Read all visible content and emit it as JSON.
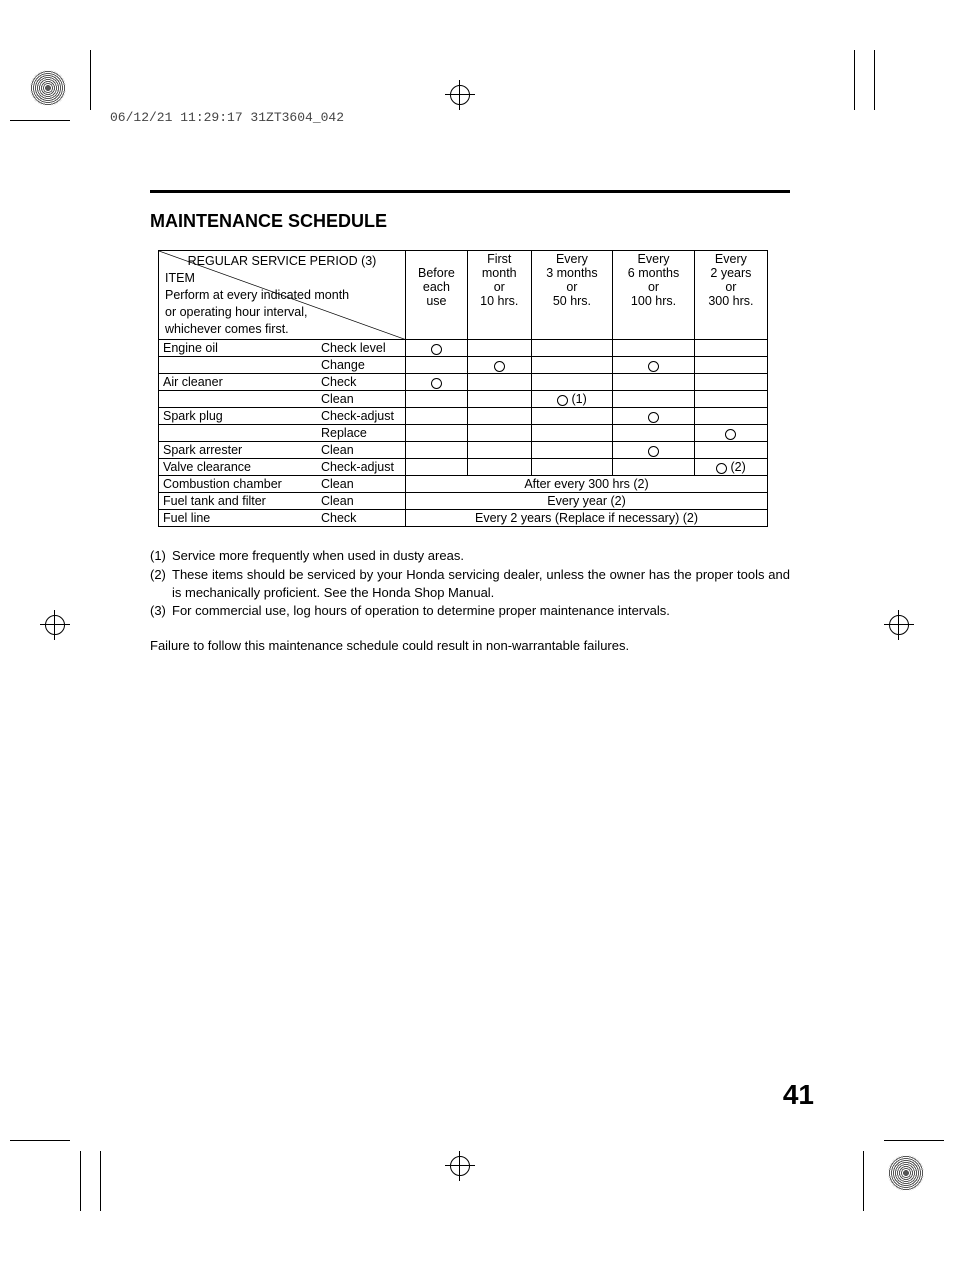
{
  "stamp": "06/12/21 11:29:17 31ZT3604_042",
  "title": "MAINTENANCE SCHEDULE",
  "header": {
    "corner_top": "REGULAR SERVICE PERIOD (3)",
    "corner_item": "ITEM",
    "corner_note_l1": "Perform at every indicated month",
    "corner_note_l2": "or operating hour interval,",
    "corner_note_l3": "whichever comes first.",
    "cols": [
      {
        "l1": "",
        "l2": "Before",
        "l3": "each",
        "l4": "use",
        "l5": ""
      },
      {
        "l1": "First",
        "l2": "month",
        "l3": "or",
        "l4": "10 hrs.",
        "l5": ""
      },
      {
        "l1": "Every",
        "l2": "3 months",
        "l3": "or",
        "l4": "50 hrs.",
        "l5": ""
      },
      {
        "l1": "Every",
        "l2": "6 months",
        "l3": "or",
        "l4": "100 hrs.",
        "l5": ""
      },
      {
        "l1": "Every",
        "l2": "2 years",
        "l3": "or",
        "l4": "300 hrs.",
        "l5": ""
      }
    ]
  },
  "rows": [
    {
      "item": "Engine oil",
      "action": "Check level",
      "cells": [
        "o",
        "",
        "",
        "",
        ""
      ]
    },
    {
      "item": "",
      "action": "Change",
      "cells": [
        "",
        "o",
        "",
        "o",
        ""
      ]
    },
    {
      "item": "Air cleaner",
      "action": "Check",
      "cells": [
        "o",
        "",
        "",
        "",
        ""
      ]
    },
    {
      "item": "",
      "action": "Clean",
      "cells": [
        "",
        "",
        "o1",
        "",
        ""
      ]
    },
    {
      "item": "Spark plug",
      "action": "Check-adjust",
      "cells": [
        "",
        "",
        "",
        "o",
        ""
      ]
    },
    {
      "item": "",
      "action": "Replace",
      "cells": [
        "",
        "",
        "",
        "",
        "o"
      ]
    },
    {
      "item": "Spark arrester",
      "action": "Clean",
      "cells": [
        "",
        "",
        "",
        "o",
        ""
      ]
    },
    {
      "item": "Valve clearance",
      "action": "Check-adjust",
      "cells": [
        "",
        "",
        "",
        "",
        "o2"
      ]
    }
  ],
  "span_rows": [
    {
      "item": "Combustion chamber",
      "action": "Clean",
      "text": "After every 300 hrs (2)"
    },
    {
      "item": "Fuel tank and filter",
      "action": "Clean",
      "text": "Every year (2)"
    },
    {
      "item": "Fuel line",
      "action": "Check",
      "text": "Every 2 years (Replace if necessary) (2)"
    }
  ],
  "notes": [
    {
      "n": "(1)",
      "t": "Service more frequently when used in dusty areas."
    },
    {
      "n": "(2)",
      "t": "These items should be serviced by your Honda servicing dealer, unless the owner has the proper tools and is mechanically proficient. See the Honda Shop Manual."
    },
    {
      "n": "(3)",
      "t": "For commercial use, log hours of operation to determine proper maintenance intervals."
    }
  ],
  "warning": "Failure to follow this maintenance schedule could result in non-warrantable failures.",
  "page": "41",
  "marks": {
    "o1_suffix": "(1)",
    "o2_suffix": "(2)"
  }
}
